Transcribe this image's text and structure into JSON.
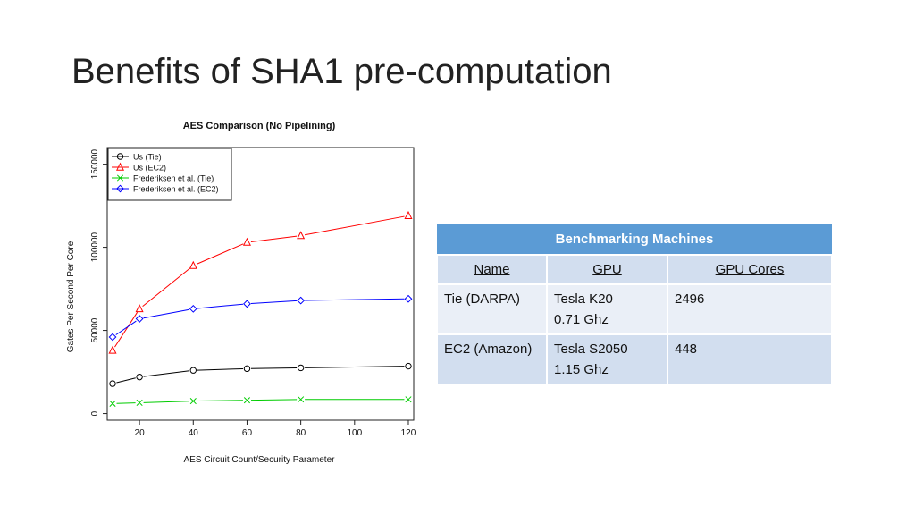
{
  "slide": {
    "title": "Benefits of SHA1 pre-computation"
  },
  "chart_data": {
    "type": "line",
    "title": "AES Comparison (No Pipelining)",
    "xlabel": "AES Circuit Count/Security Parameter",
    "ylabel": "Gates Per Second Per Core",
    "xlim": [
      8,
      122
    ],
    "ylim": [
      -4000,
      160000
    ],
    "xticks": [
      20,
      40,
      60,
      80,
      100,
      120
    ],
    "yticks": [
      0,
      50000,
      100000,
      150000
    ],
    "legend_position": "top-left",
    "grid": false,
    "series": [
      {
        "name": "Us (Tie)",
        "color": "#000000",
        "marker": "circle",
        "x": [
          10,
          20,
          40,
          60,
          80,
          120
        ],
        "y": [
          18000,
          22000,
          26000,
          27000,
          27500,
          28500
        ]
      },
      {
        "name": "Us (EC2)",
        "color": "#ff0000",
        "marker": "triangle",
        "x": [
          10,
          20,
          40,
          60,
          80,
          120
        ],
        "y": [
          38000,
          63000,
          89000,
          103000,
          107000,
          119000
        ]
      },
      {
        "name": "Frederiksen et al. (Tie)",
        "color": "#00cc00",
        "marker": "x",
        "x": [
          10,
          20,
          40,
          60,
          80,
          120
        ],
        "y": [
          6000,
          6500,
          7500,
          8000,
          8500,
          8500
        ]
      },
      {
        "name": "Frederiksen et al. (EC2)",
        "color": "#0000ff",
        "marker": "diamond",
        "x": [
          10,
          20,
          40,
          60,
          80,
          120
        ],
        "y": [
          46000,
          57000,
          63000,
          66000,
          68000,
          69000
        ]
      }
    ]
  },
  "table": {
    "caption": "Benchmarking Machines",
    "headers": [
      "Name",
      "GPU",
      "GPU Cores"
    ],
    "rows": [
      {
        "name": "Tie (DARPA)",
        "gpu_line1": "Tesla K20",
        "gpu_line2": "0.71 Ghz",
        "cores": "2496"
      },
      {
        "name": "EC2 (Amazon)",
        "gpu_line1": "Tesla S2050",
        "gpu_line2": "1.15 Ghz",
        "cores": "448"
      }
    ]
  }
}
